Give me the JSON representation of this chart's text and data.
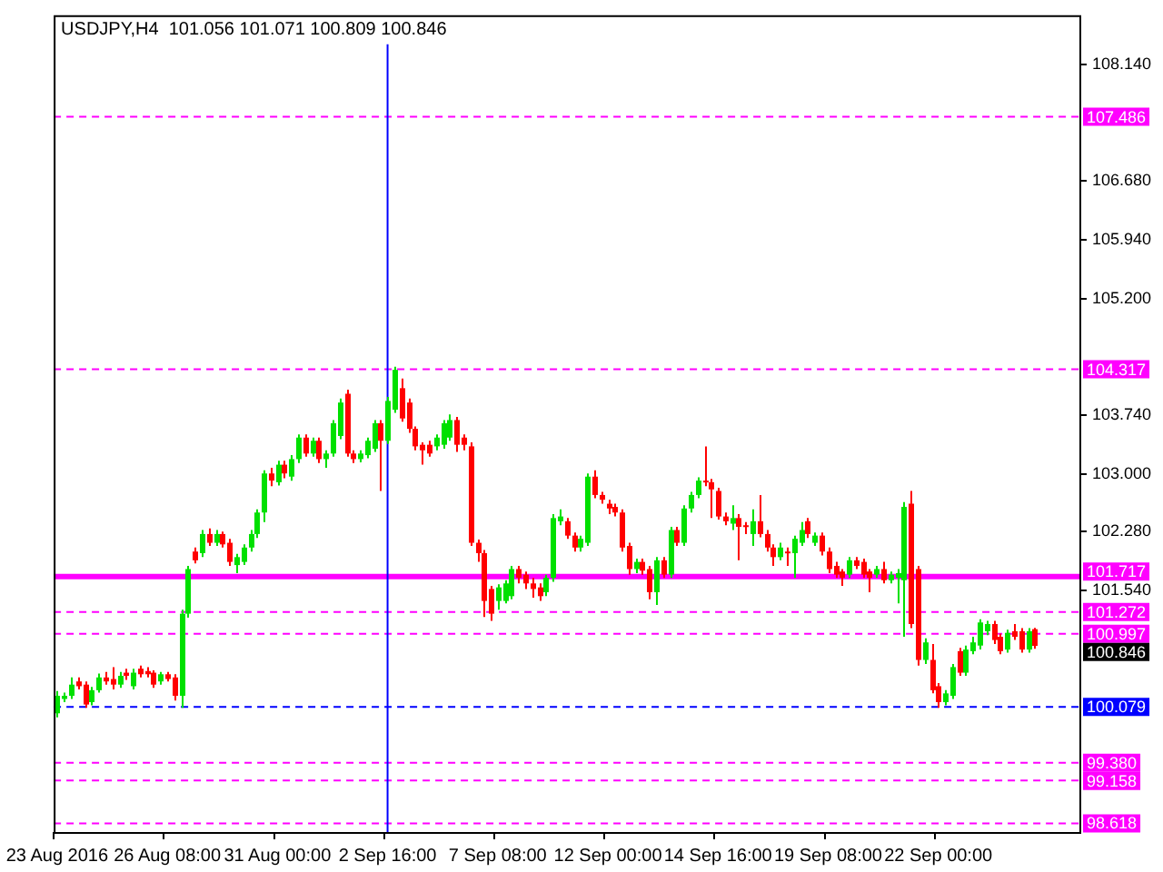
{
  "chart_data": {
    "type": "candlestick",
    "title": "USDJPY,H4  101.056 101.071 100.809 100.846",
    "categories": [
      "23 Aug 2016",
      null,
      null,
      null,
      null,
      null,
      null,
      null,
      null,
      null,
      null,
      null,
      null,
      null,
      null,
      null,
      "26 Aug 08:00",
      null,
      null,
      null,
      null,
      null,
      null,
      null,
      null,
      null,
      null,
      null,
      null,
      null,
      null,
      null,
      "31 Aug 00:00",
      null,
      null,
      null,
      null,
      null,
      null,
      null,
      null,
      null,
      null,
      null,
      null,
      null,
      null,
      null,
      "2 Sep 16:00",
      null,
      null,
      null,
      null,
      null,
      null,
      null,
      null,
      null,
      null,
      null,
      null,
      null,
      null,
      null,
      "7 Sep 08:00",
      null,
      null,
      null,
      null,
      null,
      null,
      null,
      null,
      null,
      null,
      null,
      null,
      null,
      null,
      null,
      "12 Sep 00:00",
      null,
      null,
      null,
      null,
      null,
      null,
      null,
      null,
      null,
      null,
      null,
      null,
      null,
      null,
      null,
      "14 Sep 16:00",
      null,
      null,
      null,
      null,
      null,
      null,
      null,
      null,
      null,
      null,
      null,
      null,
      null,
      null,
      null,
      "19 Sep 08:00",
      null,
      null,
      null,
      null,
      null,
      null,
      null,
      null,
      null,
      null,
      null,
      null,
      null,
      null,
      null,
      "22 Sep 00:00",
      null,
      null,
      null,
      null,
      null,
      null,
      null,
      null,
      null,
      null,
      null,
      null,
      null,
      null,
      null,
      null,
      null,
      null,
      null,
      null
    ],
    "ohlc": [
      [
        100.0,
        100.28,
        99.95,
        100.22
      ],
      [
        100.18,
        100.26,
        100.14,
        100.22
      ],
      [
        100.22,
        100.45,
        100.18,
        100.36
      ],
      [
        100.4,
        100.45,
        100.3,
        100.34
      ],
      [
        100.36,
        100.4,
        100.07,
        100.11
      ],
      [
        100.14,
        100.33,
        100.1,
        100.29
      ],
      [
        100.29,
        100.5,
        100.26,
        100.45
      ],
      [
        100.45,
        100.52,
        100.36,
        100.4
      ],
      [
        100.43,
        100.58,
        100.3,
        100.36
      ],
      [
        100.36,
        100.52,
        100.32,
        100.47
      ],
      [
        100.51,
        100.56,
        100.42,
        100.47
      ],
      [
        100.34,
        100.56,
        100.3,
        100.51
      ],
      [
        100.56,
        100.6,
        100.45,
        100.49
      ],
      [
        100.53,
        100.58,
        100.45,
        100.49
      ],
      [
        100.51,
        100.54,
        100.32,
        100.36
      ],
      [
        100.4,
        100.52,
        100.36,
        100.49
      ],
      [
        100.49,
        100.52,
        100.4,
        100.43
      ],
      [
        100.45,
        100.49,
        100.16,
        100.22
      ],
      [
        100.22,
        101.3,
        100.07,
        101.25
      ],
      [
        101.25,
        101.85,
        101.2,
        101.81
      ],
      [
        102.03,
        102.08,
        101.88,
        101.92
      ],
      [
        102.01,
        102.3,
        101.96,
        102.25
      ],
      [
        102.25,
        102.32,
        102.1,
        102.14
      ],
      [
        102.14,
        102.3,
        102.1,
        102.25
      ],
      [
        102.25,
        102.28,
        102.08,
        102.12
      ],
      [
        102.14,
        102.19,
        101.85,
        101.9
      ],
      [
        101.86,
        102.0,
        101.76,
        101.96
      ],
      [
        101.9,
        102.12,
        101.86,
        102.08
      ],
      [
        102.08,
        102.3,
        102.03,
        102.25
      ],
      [
        102.25,
        102.56,
        102.2,
        102.52
      ],
      [
        102.52,
        103.05,
        102.4,
        103.01
      ],
      [
        103.01,
        103.08,
        102.85,
        102.92
      ],
      [
        102.9,
        103.17,
        102.86,
        103.12
      ],
      [
        103.12,
        103.17,
        102.95,
        103.01
      ],
      [
        102.97,
        103.24,
        102.92,
        103.19
      ],
      [
        103.19,
        103.5,
        103.14,
        103.46
      ],
      [
        103.46,
        103.5,
        103.22,
        103.26
      ],
      [
        103.26,
        103.46,
        103.22,
        103.42
      ],
      [
        103.42,
        103.46,
        103.14,
        103.19
      ],
      [
        103.19,
        103.3,
        103.08,
        103.26
      ],
      [
        103.26,
        103.68,
        103.22,
        103.64
      ],
      [
        103.48,
        103.95,
        103.44,
        103.9
      ],
      [
        104.01,
        104.06,
        103.22,
        103.26
      ],
      [
        103.26,
        103.3,
        103.14,
        103.19
      ],
      [
        103.19,
        103.3,
        103.15,
        103.26
      ],
      [
        103.24,
        103.46,
        103.2,
        103.42
      ],
      [
        103.32,
        103.68,
        103.28,
        103.64
      ],
      [
        103.64,
        103.68,
        102.79,
        103.42
      ],
      [
        103.42,
        103.97,
        103.38,
        103.92
      ],
      [
        103.81,
        104.35,
        103.77,
        104.31
      ],
      [
        104.08,
        104.2,
        103.66,
        103.7
      ],
      [
        103.9,
        103.95,
        103.52,
        103.57
      ],
      [
        103.57,
        103.6,
        103.3,
        103.35
      ],
      [
        103.37,
        103.4,
        103.12,
        103.3
      ],
      [
        103.37,
        103.42,
        103.22,
        103.26
      ],
      [
        103.35,
        103.5,
        103.3,
        103.46
      ],
      [
        103.37,
        103.68,
        103.32,
        103.64
      ],
      [
        103.46,
        103.75,
        103.42,
        103.68
      ],
      [
        103.68,
        103.72,
        103.28,
        103.37
      ],
      [
        103.46,
        103.5,
        103.3,
        103.37
      ],
      [
        103.35,
        103.4,
        102.1,
        102.14
      ],
      [
        102.14,
        102.18,
        101.9,
        102.01
      ],
      [
        102.01,
        102.05,
        101.21,
        101.41
      ],
      [
        101.56,
        101.6,
        101.16,
        101.25
      ],
      [
        101.41,
        101.62,
        101.3,
        101.58
      ],
      [
        101.41,
        101.67,
        101.38,
        101.63
      ],
      [
        101.47,
        101.85,
        101.43,
        101.81
      ],
      [
        101.81,
        101.85,
        101.63,
        101.7
      ],
      [
        101.74,
        101.78,
        101.56,
        101.63
      ],
      [
        101.63,
        101.7,
        101.45,
        101.56
      ],
      [
        101.58,
        101.63,
        101.41,
        101.47
      ],
      [
        101.52,
        101.74,
        101.47,
        101.7
      ],
      [
        101.7,
        102.5,
        101.65,
        102.45
      ],
      [
        102.41,
        102.56,
        102.36,
        102.47
      ],
      [
        102.41,
        102.45,
        102.19,
        102.23
      ],
      [
        102.23,
        102.27,
        102.03,
        102.08
      ],
      [
        102.08,
        102.23,
        102.03,
        102.19
      ],
      [
        102.14,
        103.01,
        102.1,
        102.97
      ],
      [
        102.97,
        103.05,
        102.7,
        102.74
      ],
      [
        102.74,
        102.78,
        102.63,
        102.68
      ],
      [
        102.63,
        102.68,
        102.5,
        102.57
      ],
      [
        102.59,
        102.63,
        102.47,
        102.52
      ],
      [
        102.52,
        102.56,
        102.03,
        102.08
      ],
      [
        102.1,
        102.14,
        101.74,
        101.81
      ],
      [
        101.81,
        101.94,
        101.76,
        101.9
      ],
      [
        101.9,
        101.94,
        101.74,
        101.79
      ],
      [
        101.81,
        101.85,
        101.43,
        101.52
      ],
      [
        101.52,
        101.96,
        101.36,
        101.92
      ],
      [
        101.92,
        101.96,
        101.7,
        101.74
      ],
      [
        101.74,
        102.34,
        101.7,
        102.3
      ],
      [
        102.3,
        102.34,
        102.1,
        102.14
      ],
      [
        102.14,
        102.61,
        102.1,
        102.57
      ],
      [
        102.57,
        102.78,
        102.52,
        102.74
      ],
      [
        102.74,
        102.96,
        102.7,
        102.92
      ],
      [
        102.92,
        103.35,
        102.85,
        102.9
      ],
      [
        102.9,
        102.94,
        102.45,
        102.81
      ],
      [
        102.79,
        102.83,
        102.43,
        102.47
      ],
      [
        102.47,
        102.52,
        102.36,
        102.41
      ],
      [
        102.38,
        102.61,
        102.3,
        102.45
      ],
      [
        102.45,
        102.5,
        101.92,
        102.34
      ],
      [
        102.36,
        102.4,
        102.25,
        102.34
      ],
      [
        102.25,
        102.56,
        102.1,
        102.41
      ],
      [
        102.41,
        102.74,
        102.21,
        102.25
      ],
      [
        102.25,
        102.3,
        102.03,
        102.08
      ],
      [
        102.08,
        102.12,
        101.85,
        101.96
      ],
      [
        101.96,
        102.14,
        101.92,
        102.08
      ],
      [
        102.03,
        102.08,
        101.85,
        102.01
      ],
      [
        102.01,
        102.23,
        101.7,
        102.19
      ],
      [
        102.14,
        102.4,
        102.1,
        102.3
      ],
      [
        102.41,
        102.45,
        102.2,
        102.25
      ],
      [
        102.14,
        102.27,
        102.1,
        102.23
      ],
      [
        102.23,
        102.27,
        101.98,
        102.03
      ],
      [
        102.03,
        102.08,
        101.76,
        101.81
      ],
      [
        101.85,
        101.9,
        101.7,
        101.74
      ],
      [
        101.78,
        101.81,
        101.6,
        101.7
      ],
      [
        101.74,
        101.96,
        101.7,
        101.92
      ],
      [
        101.92,
        101.96,
        101.81,
        101.85
      ],
      [
        101.9,
        101.94,
        101.7,
        101.74
      ],
      [
        101.78,
        101.81,
        101.52,
        101.7
      ],
      [
        101.74,
        101.85,
        101.7,
        101.81
      ],
      [
        101.81,
        101.9,
        101.63,
        101.67
      ],
      [
        101.67,
        101.78,
        101.63,
        101.74
      ],
      [
        101.7,
        101.81,
        101.38,
        101.76
      ],
      [
        101.67,
        102.65,
        100.96,
        102.59
      ],
      [
        102.63,
        102.79,
        101.07,
        101.12
      ],
      [
        101.81,
        101.85,
        100.6,
        100.67
      ],
      [
        100.67,
        100.94,
        100.62,
        100.89
      ],
      [
        100.67,
        100.87,
        100.25,
        100.29
      ],
      [
        100.34,
        100.38,
        100.07,
        100.14
      ],
      [
        100.14,
        100.29,
        100.1,
        100.25
      ],
      [
        100.22,
        100.62,
        100.18,
        100.58
      ],
      [
        100.78,
        100.82,
        100.47,
        100.51
      ],
      [
        100.51,
        100.85,
        100.47,
        100.8
      ],
      [
        100.78,
        100.96,
        100.74,
        100.89
      ],
      [
        100.85,
        101.18,
        100.8,
        101.14
      ],
      [
        101.03,
        101.16,
        100.98,
        101.12
      ],
      [
        101.12,
        101.16,
        100.87,
        100.92
      ],
      [
        100.96,
        101.0,
        100.74,
        100.78
      ],
      [
        100.8,
        101.05,
        100.76,
        101.01
      ],
      [
        101.03,
        101.12,
        100.92,
        100.96
      ],
      [
        101.03,
        101.07,
        100.76,
        100.8
      ],
      [
        100.8,
        101.07,
        100.76,
        101.03
      ],
      [
        101.056,
        101.071,
        100.809,
        100.846
      ],
      null,
      null,
      null,
      null,
      null,
      null
    ],
    "colors": [
      "#00e000",
      "#00e000",
      "#00e000",
      "#ff0000",
      "#ff0000",
      "#00e000",
      "#00e000",
      "#ff0000",
      "#ff0000",
      "#00e000",
      "#ff0000",
      "#00e000",
      "#ff0000",
      "#ff0000",
      "#ff0000",
      "#00e000",
      "#ff0000",
      "#ff0000",
      "#00e000",
      "#00e000",
      "#ff0000",
      "#00e000",
      "#ff0000",
      "#00e000",
      "#ff0000",
      "#ff0000",
      "#00e000",
      "#00e000",
      "#00e000",
      "#00e000",
      "#00e000",
      "#ff0000",
      "#00e000",
      "#ff0000",
      "#00e000",
      "#00e000",
      "#ff0000",
      "#00e000",
      "#ff0000",
      "#00e000",
      "#00e000",
      "#00e000",
      "#ff0000",
      "#ff0000",
      "#00e000",
      "#00e000",
      "#00e000",
      "#ff0000",
      "#00e000",
      "#00e000",
      "#ff0000",
      "#ff0000",
      "#ff0000",
      "#ff0000",
      "#ff0000",
      "#00e000",
      "#00e000",
      "#00e000",
      "#ff0000",
      "#ff0000",
      "#ff0000",
      "#ff0000",
      "#ff0000",
      "#ff0000",
      "#00e000",
      "#00e000",
      "#00e000",
      "#ff0000",
      "#ff0000",
      "#ff0000",
      "#ff0000",
      "#00e000",
      "#00e000",
      "#00e000",
      "#ff0000",
      "#ff0000",
      "#00e000",
      "#00e000",
      "#ff0000",
      "#ff0000",
      "#ff0000",
      "#ff0000",
      "#ff0000",
      "#ff0000",
      "#00e000",
      "#ff0000",
      "#ff0000",
      "#00e000",
      "#ff0000",
      "#00e000",
      "#ff0000",
      "#00e000",
      "#00e000",
      "#00e000",
      "#ff0000",
      "#ff0000",
      "#ff0000",
      "#ff0000",
      "#00e000",
      "#ff0000",
      "#ff0000",
      "#00e000",
      "#ff0000",
      "#ff0000",
      "#ff0000",
      "#00e000",
      "#ff0000",
      "#00e000",
      "#00e000",
      "#ff0000",
      "#00e000",
      "#ff0000",
      "#ff0000",
      "#ff0000",
      "#ff0000",
      "#00e000",
      "#ff0000",
      "#ff0000",
      "#ff0000",
      "#00e000",
      "#ff0000",
      "#00e000",
      "#00e000",
      "#00e000",
      "#ff0000",
      "#ff0000",
      "#00e000",
      "#ff0000",
      "#ff0000",
      "#00e000",
      "#00e000",
      "#ff0000",
      "#00e000",
      "#00e000",
      "#00e000",
      "#00e000",
      "#ff0000",
      "#ff0000",
      "#00e000",
      "#ff0000",
      "#ff0000",
      "#00e000",
      "#ff0000",
      null,
      null,
      null,
      null,
      null,
      null
    ],
    "ylim": [
      98.51,
      108.76
    ],
    "yticks": [
      {
        "value": 108.14,
        "label": "108.140"
      },
      {
        "value": 106.68,
        "label": "106.680"
      },
      {
        "value": 105.94,
        "label": "105.940"
      },
      {
        "value": 105.2,
        "label": "105.200"
      },
      {
        "value": 103.74,
        "label": "103.740"
      },
      {
        "value": 103.0,
        "label": "103.000"
      },
      {
        "value": 102.28,
        "label": "102.280"
      },
      {
        "value": 101.54,
        "label": "101.540"
      }
    ],
    "ref_lines": [
      {
        "axis": "y",
        "value": 107.486,
        "label": "107.486",
        "color": "#ff00ff",
        "line_style": "dashed"
      },
      {
        "axis": "y",
        "value": 104.317,
        "label": "104.317",
        "color": "#ff00ff",
        "line_style": "dashed"
      },
      {
        "axis": "y",
        "value": 101.717,
        "label": "101.717",
        "color": "#ff00ff",
        "line_style": "solid"
      },
      {
        "axis": "y",
        "value": 101.272,
        "label": "101.272",
        "color": "#ff00ff",
        "line_style": "dashed"
      },
      {
        "axis": "y",
        "value": 100.997,
        "label": "100.997",
        "color": "#ff00ff",
        "line_style": "dashed"
      },
      {
        "axis": "y",
        "value": 100.079,
        "label": "100.079",
        "color": "#0000ff",
        "line_style": "dashed"
      },
      {
        "axis": "y",
        "value": 99.38,
        "label": "99.380",
        "color": "#ff00ff",
        "line_style": "dashed"
      },
      {
        "axis": "y",
        "value": 99.158,
        "label": "99.158",
        "color": "#ff00ff",
        "line_style": "dashed"
      },
      {
        "axis": "y",
        "value": 98.618,
        "label": "98.618",
        "color": "#ff00ff",
        "line_style": "dashed"
      },
      {
        "axis": "x",
        "value": "2 Sep 16:00",
        "color": "#0000ff",
        "line_style": "solid"
      }
    ],
    "annotations": [
      "100.846"
    ]
  }
}
